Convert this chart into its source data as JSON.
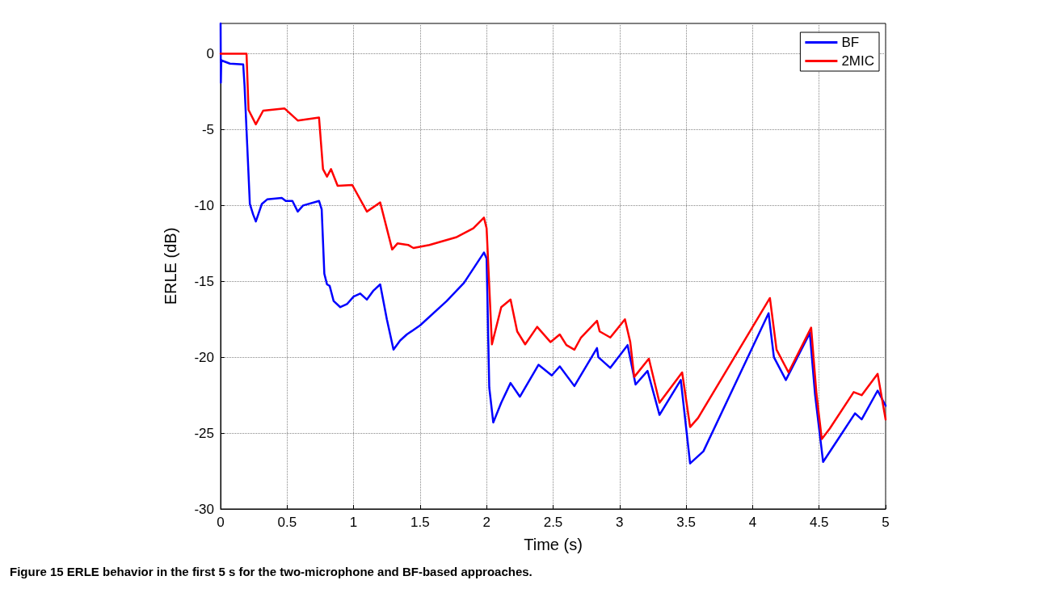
{
  "chart_data": {
    "type": "line",
    "xlabel": "Time (s)",
    "ylabel": "ERLE (dB)",
    "xlim": [
      0,
      5
    ],
    "ylim": [
      -30,
      2
    ],
    "xticks": [
      0,
      0.5,
      1,
      1.5,
      2,
      2.5,
      3,
      3.5,
      4,
      4.5,
      5
    ],
    "yticks": [
      -30,
      -25,
      -20,
      -15,
      -10,
      -5,
      0
    ],
    "grid": true,
    "legend": "top right",
    "marker": "none",
    "line_style": "solid",
    "annotations": [
      "Figure 15 ERLE behavior in the first 5 s for the two-microphone and BF-based approaches."
    ],
    "series": [
      {
        "name": "BF",
        "color": "#0000ff",
        "x": [
          0,
          0.002,
          0.005,
          0.01,
          0.07,
          0.17,
          0.18,
          0.2,
          0.22,
          0.245,
          0.265,
          0.31,
          0.35,
          0.46,
          0.49,
          0.54,
          0.58,
          0.62,
          0.74,
          0.76,
          0.78,
          0.8,
          0.82,
          0.85,
          0.9,
          0.95,
          1.0,
          1.05,
          1.1,
          1.15,
          1.2,
          1.25,
          1.3,
          1.35,
          1.4,
          1.5,
          1.7,
          1.83,
          1.98,
          2.0,
          2.02,
          2.05,
          2.11,
          2.18,
          2.25,
          2.39,
          2.49,
          2.55,
          2.66,
          2.83,
          2.84,
          2.93,
          3.06,
          3.12,
          3.21,
          3.3,
          3.46,
          3.53,
          3.63,
          4.12,
          4.16,
          4.25,
          4.43,
          4.47,
          4.53,
          4.65,
          4.77,
          4.82,
          4.94,
          5.0
        ],
        "values": [
          2,
          -1.9,
          -0.4,
          -0.45,
          -0.65,
          -0.7,
          -2.1,
          -6.0,
          -9.9,
          -10.6,
          -11.05,
          -9.9,
          -9.6,
          -9.5,
          -9.7,
          -9.7,
          -10.4,
          -10.0,
          -9.7,
          -10.25,
          -14.5,
          -15.2,
          -15.3,
          -16.3,
          -16.7,
          -16.5,
          -16.0,
          -15.8,
          -16.2,
          -15.6,
          -15.2,
          -17.5,
          -19.5,
          -18.9,
          -18.5,
          -17.9,
          -16.3,
          -15.1,
          -13.1,
          -13.5,
          -22,
          -24.3,
          -23,
          -21.7,
          -22.6,
          -20.5,
          -21.2,
          -20.6,
          -21.9,
          -19.4,
          -20.0,
          -20.7,
          -19.2,
          -21.8,
          -20.9,
          -23.8,
          -21.5,
          -27.0,
          -26.2,
          -17.1,
          -20.0,
          -21.5,
          -18.4,
          -22.5,
          -26.9,
          -25.3,
          -23.7,
          -24.1,
          -22.2,
          -23.2
        ]
      },
      {
        "name": "2MIC",
        "color": "#ff0000",
        "x": [
          0,
          0.195,
          0.21,
          0.265,
          0.32,
          0.48,
          0.58,
          0.74,
          0.77,
          0.8,
          0.83,
          0.88,
          0.99,
          1.1,
          1.2,
          1.29,
          1.33,
          1.41,
          1.45,
          1.57,
          1.77,
          1.9,
          1.98,
          2.0,
          2.04,
          2.11,
          2.18,
          2.23,
          2.29,
          2.38,
          2.48,
          2.55,
          2.6,
          2.66,
          2.71,
          2.83,
          2.85,
          2.93,
          3.04,
          3.08,
          3.11,
          3.22,
          3.3,
          3.47,
          3.53,
          3.59,
          4.13,
          4.18,
          4.27,
          4.44,
          4.48,
          4.52,
          4.58,
          4.76,
          4.82,
          4.94,
          5.0
        ],
        "values": [
          0,
          0,
          -3.7,
          -4.65,
          -3.75,
          -3.6,
          -4.4,
          -4.2,
          -7.6,
          -8.1,
          -7.6,
          -8.7,
          -8.65,
          -10.4,
          -9.8,
          -12.9,
          -12.5,
          -12.6,
          -12.8,
          -12.6,
          -12.1,
          -11.5,
          -10.8,
          -11.5,
          -19.15,
          -16.7,
          -16.2,
          -18.3,
          -19.15,
          -18.0,
          -19.0,
          -18.5,
          -19.2,
          -19.5,
          -18.7,
          -17.6,
          -18.3,
          -18.7,
          -17.5,
          -19.0,
          -21.3,
          -20.1,
          -23.0,
          -21.0,
          -24.6,
          -24.0,
          -16.1,
          -19.5,
          -21.0,
          -18.05,
          -22.4,
          -25.4,
          -24.7,
          -22.3,
          -22.5,
          -21.1,
          -24.1
        ]
      }
    ]
  }
}
